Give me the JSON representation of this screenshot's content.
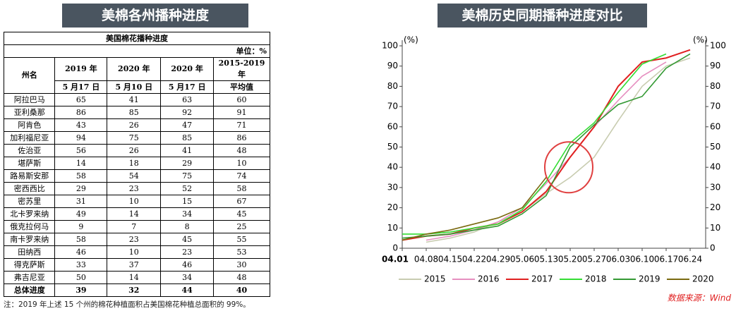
{
  "left_title": "美棉各州播种进度",
  "table": {
    "title": "美国棉花播种进度",
    "unit": "单位：%",
    "header": [
      [
        "州名"
      ],
      [
        "2019 年",
        "5 月17 日"
      ],
      [
        "2020 年",
        "5 月10 日"
      ],
      [
        "2020 年",
        "5 月17 日"
      ],
      [
        "2015-2019 年",
        "平均值"
      ]
    ],
    "rows": [
      [
        "阿拉巴马",
        "65",
        "41",
        "63",
        "60"
      ],
      [
        "亚利桑那",
        "86",
        "85",
        "92",
        "91"
      ],
      [
        "阿肯色",
        "43",
        "26",
        "47",
        "71"
      ],
      [
        "加利福尼亚",
        "94",
        "75",
        "85",
        "86"
      ],
      [
        "佐治亚",
        "56",
        "26",
        "41",
        "48"
      ],
      [
        "堪萨斯",
        "14",
        "18",
        "29",
        "10"
      ],
      [
        "路易斯安那",
        "58",
        "54",
        "75",
        "74"
      ],
      [
        "密西西比",
        "29",
        "23",
        "52",
        "58"
      ],
      [
        "密苏里",
        "31",
        "10",
        "15",
        "67"
      ],
      [
        "北卡罗来纳",
        "49",
        "14",
        "34",
        "45"
      ],
      [
        "俄克拉何马",
        "9",
        "7",
        "8",
        "25"
      ],
      [
        "南卡罗来纳",
        "58",
        "23",
        "45",
        "55"
      ],
      [
        "田纳西",
        "46",
        "10",
        "23",
        "53"
      ],
      [
        "得克萨斯",
        "33",
        "37",
        "46",
        "30"
      ],
      [
        "弗吉尼亚",
        "50",
        "14",
        "34",
        "48"
      ],
      [
        "总体进度",
        "39",
        "32",
        "44",
        "40"
      ]
    ]
  },
  "note": "注：2019 年上述 15 个州的棉花种植面积占美国棉花种植总面积的 99%。",
  "chart_data": {
    "type": "line",
    "title": "美棉历史同期播种进度对比",
    "y_unit": "(%)",
    "source": "数据来源：Wind",
    "categories": [
      "04.01",
      "04.08",
      "04.15",
      "04.22",
      "04.29",
      "05.06",
      "05.13",
      "05.20",
      "05.27",
      "06.03",
      "06.10",
      "06.17",
      "06.24"
    ],
    "ylim": [
      0,
      100
    ],
    "yticks": [
      0,
      10,
      20,
      30,
      40,
      50,
      60,
      70,
      80,
      90,
      100
    ],
    "y2lim": [
      0,
      100
    ],
    "y2ticks": [
      0,
      10,
      20,
      30,
      40,
      50,
      60,
      70,
      80,
      90,
      100
    ],
    "series": [
      {
        "name": "2015",
        "color": "#c8ccb0",
        "values": [
          null,
          3,
          5,
          8,
          13,
          18,
          27,
          35,
          45,
          63,
          80,
          90,
          94
        ]
      },
      {
        "name": "2016",
        "color": "#e68fc0",
        "values": [
          null,
          4,
          6,
          9,
          13,
          20,
          32,
          45,
          60,
          73,
          85,
          92,
          null
        ]
      },
      {
        "name": "2017",
        "color": "#e02020",
        "values": [
          4,
          6,
          7,
          10,
          12,
          18,
          28,
          45,
          60,
          80,
          92,
          94,
          98
        ]
      },
      {
        "name": "2018",
        "color": "#33dd33",
        "values": [
          7,
          7,
          8,
          10,
          12,
          19,
          33,
          52,
          62,
          77,
          91,
          96,
          null
        ]
      },
      {
        "name": "2019",
        "color": "#339933",
        "values": [
          5,
          6,
          7,
          9,
          11,
          17,
          26,
          50,
          61,
          71,
          75,
          89,
          96
        ]
      },
      {
        "name": "2020",
        "color": "#7a6a10",
        "values": [
          4,
          7,
          9,
          12,
          15,
          20,
          35,
          null,
          null,
          null,
          null,
          null,
          null
        ]
      }
    ]
  }
}
